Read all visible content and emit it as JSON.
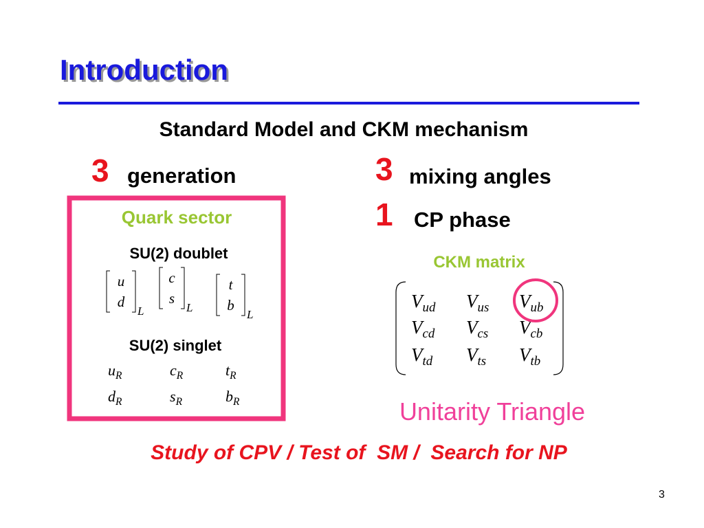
{
  "title": "Introduction",
  "subtitle": "Standard Model and CKM mechanism",
  "generation": {
    "number": 3,
    "label": "generation"
  },
  "mixing_angles": {
    "number": 3,
    "label": "mixing angles"
  },
  "cp_phase": {
    "number": 1,
    "label": "CP phase"
  },
  "quark_sector": {
    "title": "Quark sector",
    "doublet_label": "SU(2) doublet",
    "doublets": [
      {
        "top": "u",
        "bottom": "d",
        "sub": "L"
      },
      {
        "top": "c",
        "bottom": "s",
        "sub": "L"
      },
      {
        "top": "t",
        "bottom": "b",
        "sub": "L"
      }
    ],
    "singlet_label": "SU(2) singlet",
    "singlets": [
      [
        {
          "base": "u",
          "sub": "R"
        },
        {
          "base": "c",
          "sub": "R"
        },
        {
          "base": "t",
          "sub": "R"
        }
      ],
      [
        {
          "base": "d",
          "sub": "R"
        },
        {
          "base": "s",
          "sub": "R"
        },
        {
          "base": "b",
          "sub": "R"
        }
      ]
    ]
  },
  "ckm": {
    "title": "CKM matrix",
    "rows": [
      [
        {
          "base": "V",
          "sub": "ud"
        },
        {
          "base": "V",
          "sub": "us"
        },
        {
          "base": "V",
          "sub": "ub"
        }
      ],
      [
        {
          "base": "V",
          "sub": "cd"
        },
        {
          "base": "V",
          "sub": "cs"
        },
        {
          "base": "V",
          "sub": "cb"
        }
      ],
      [
        {
          "base": "V",
          "sub": "td"
        },
        {
          "base": "V",
          "sub": "ts"
        },
        {
          "base": "V",
          "sub": "tb"
        }
      ]
    ]
  },
  "unitarity": "Unitarity Triangle",
  "footer": "Study of CPV / Test of  SM /  Search for NP",
  "page_number": 3
}
